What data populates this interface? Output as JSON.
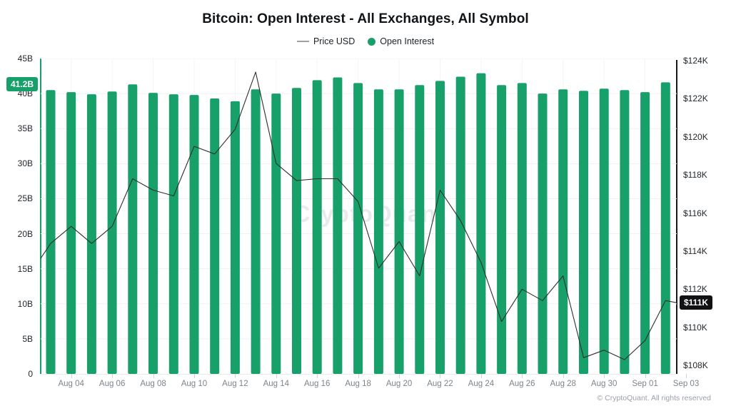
{
  "title": "Bitcoin: Open Interest - All Exchanges, All Symbol",
  "legend": {
    "items": [
      {
        "label": "Price USD",
        "swatch": "line",
        "color": "#9aa0a6"
      },
      {
        "label": "Open Interest",
        "swatch": "dot",
        "color": "#18a06b"
      }
    ]
  },
  "watermark": "CryptoQuant",
  "footer": "© CryptoQuant. All rights reserved",
  "badges": {
    "open_interest": {
      "text": "41.2B",
      "bg": "#18a06b"
    },
    "price": {
      "text": "$111K",
      "bg": "#101214"
    }
  },
  "chart_data": {
    "type": "bar+line",
    "title": "Bitcoin: Open Interest - All Exchanges, All Symbol",
    "categories": [
      "Aug 03",
      "Aug 04",
      "Aug 05",
      "Aug 06",
      "Aug 07",
      "Aug 08",
      "Aug 09",
      "Aug 10",
      "Aug 11",
      "Aug 12",
      "Aug 13",
      "Aug 14",
      "Aug 15",
      "Aug 16",
      "Aug 17",
      "Aug 18",
      "Aug 19",
      "Aug 20",
      "Aug 21",
      "Aug 22",
      "Aug 23",
      "Aug 24",
      "Aug 25",
      "Aug 26",
      "Aug 27",
      "Aug 28",
      "Aug 29",
      "Aug 30",
      "Aug 31",
      "Sep 01",
      "Sep 02",
      "Sep 03"
    ],
    "series": [
      {
        "name": "Open Interest",
        "type": "bar",
        "axis": "left",
        "unit": "B USD",
        "color": "#18a06b",
        "values": [
          40.5,
          40.2,
          39.9,
          40.3,
          41.3,
          40.1,
          39.9,
          39.8,
          39.3,
          38.9,
          40.6,
          40.0,
          40.8,
          41.9,
          42.3,
          41.5,
          40.6,
          40.6,
          41.2,
          41.8,
          42.4,
          42.9,
          41.2,
          41.5,
          40.0,
          40.6,
          40.4,
          40.7,
          40.5,
          40.2,
          41.6,
          41.2
        ]
      },
      {
        "name": "Price USD",
        "type": "line",
        "axis": "right",
        "unit": "K USD",
        "color": "#2e2e2e",
        "values": [
          114.4,
          115.3,
          114.4,
          115.3,
          117.8,
          117.2,
          116.9,
          119.5,
          119.1,
          120.4,
          123.4,
          118.6,
          117.7,
          117.8,
          117.8,
          116.6,
          113.1,
          114.5,
          112.7,
          117.2,
          115.6,
          113.4,
          110.3,
          112.0,
          111.4,
          112.7,
          108.4,
          108.8,
          108.3,
          109.3,
          111.4,
          111.2
        ]
      }
    ],
    "price_edge_start_value_k": 112.8,
    "left_axis": {
      "min": 0,
      "max": 45,
      "tick_labels": [
        "45B",
        "40B",
        "35B",
        "30B",
        "25B",
        "20B",
        "15B",
        "10B",
        "5B",
        "0"
      ]
    },
    "right_axis": {
      "min": 108,
      "max": 124,
      "tick_labels": [
        "$124K",
        "$122K",
        "$120K",
        "$118K",
        "$116K",
        "$114K",
        "$112K",
        "$110K",
        "$108K"
      ]
    },
    "x_tick_labels": [
      "Aug 04",
      "Aug 06",
      "Aug 08",
      "Aug 10",
      "Aug 12",
      "Aug 14",
      "Aug 16",
      "Aug 18",
      "Aug 20",
      "Aug 22",
      "Aug 24",
      "Aug 26",
      "Aug 28",
      "Aug 30",
      "Sep 01",
      "Sep 03"
    ],
    "grid": true,
    "legend_position": "top",
    "last_values": {
      "open_interest_b": 41.2,
      "price_usd_k": 111
    }
  }
}
